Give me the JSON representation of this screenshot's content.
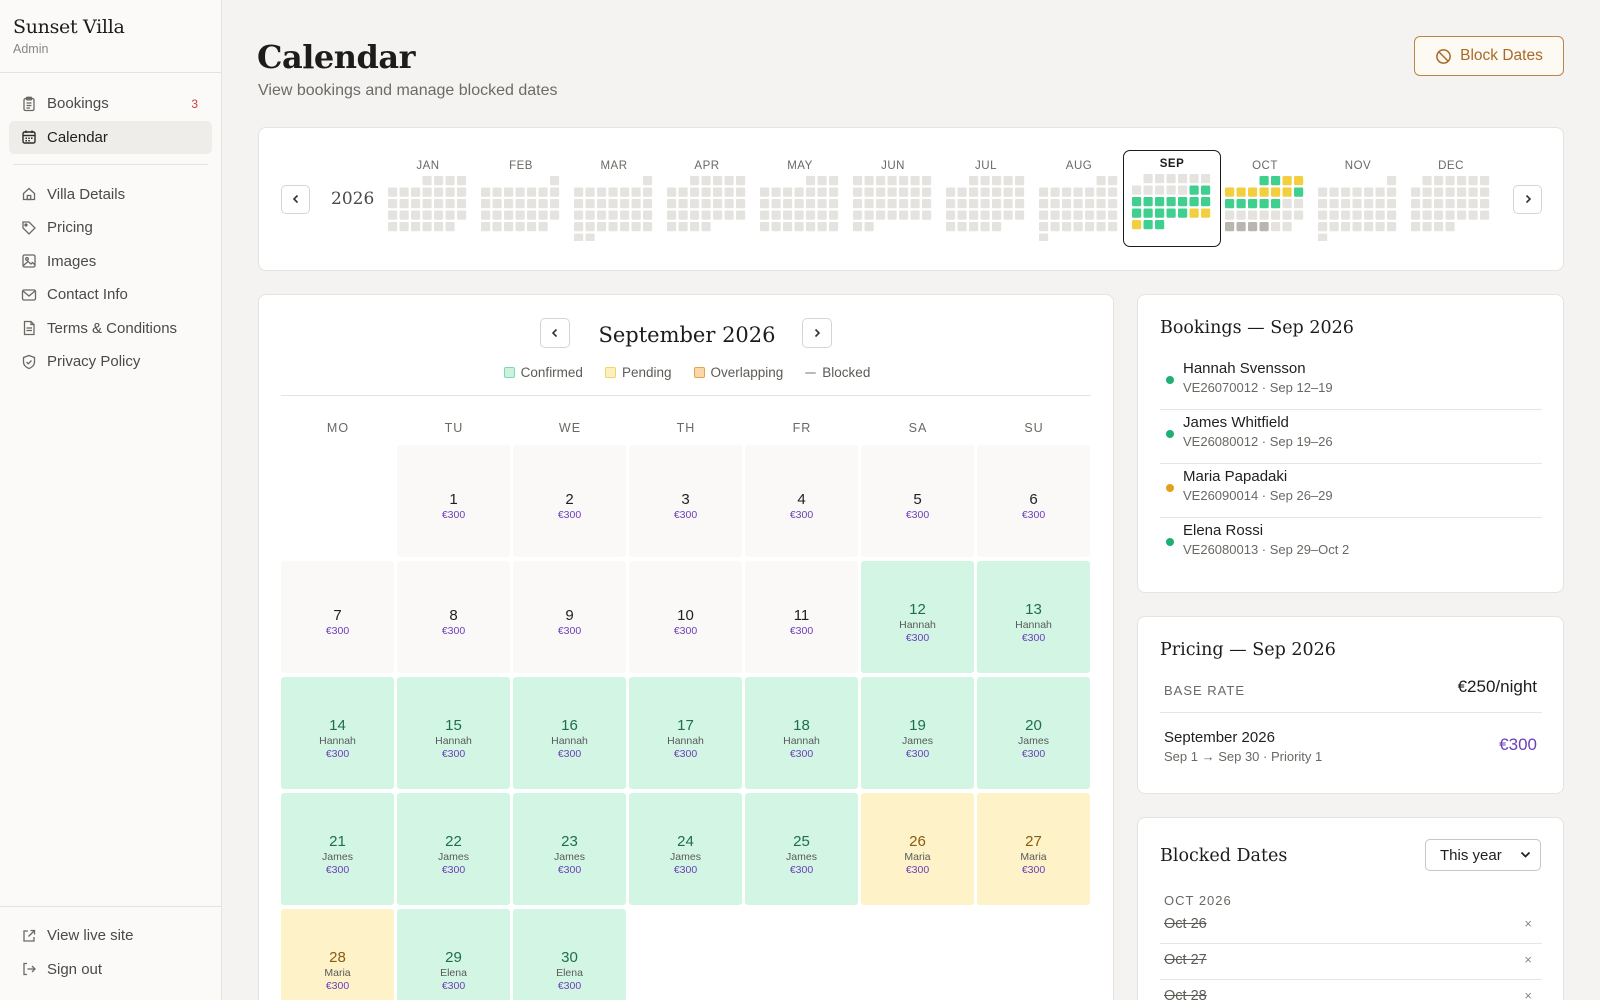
{
  "brand": {
    "title": "Sunset Villa",
    "subtitle": "Admin"
  },
  "nav": {
    "items": [
      {
        "label": "Bookings",
        "icon": "clipboard-icon",
        "badge": "3",
        "active": false
      },
      {
        "label": "Calendar",
        "icon": "calendar-icon",
        "active": true
      },
      {
        "label": "Villa Details",
        "icon": "home-icon"
      },
      {
        "label": "Pricing",
        "icon": "tag-icon"
      },
      {
        "label": "Images",
        "icon": "image-icon"
      },
      {
        "label": "Contact Info",
        "icon": "mail-icon"
      },
      {
        "label": "Terms & Conditions",
        "icon": "document-icon"
      },
      {
        "label": "Privacy Policy",
        "icon": "shield-icon"
      }
    ],
    "bottom": [
      {
        "label": "View live site",
        "icon": "external-link-icon"
      },
      {
        "label": "Sign out",
        "icon": "sign-out-icon"
      }
    ]
  },
  "header": {
    "title": "Calendar",
    "subtitle": "View bookings and manage blocked dates",
    "block_button": "Block Dates"
  },
  "year_strip": {
    "year": "2026",
    "months": [
      "JAN",
      "FEB",
      "MAR",
      "APR",
      "MAY",
      "JUN",
      "JUL",
      "AUG",
      "SEP",
      "OCT",
      "NOV",
      "DEC"
    ],
    "selected": "SEP"
  },
  "calendar": {
    "month_title": "September 2026",
    "legend": [
      {
        "label": "Confirmed",
        "color": "#c9f3de",
        "border": "#7fd9ae"
      },
      {
        "label": "Pending",
        "color": "#fdf0bf",
        "border": "#f0d56a"
      },
      {
        "label": "Overlapping",
        "color": "#fbd7a8",
        "border": "#e9a24e"
      },
      {
        "label": "Blocked",
        "color": "#ffffff",
        "border": "#bdbab5"
      }
    ],
    "weekdays": [
      "MO",
      "TU",
      "WE",
      "TH",
      "FR",
      "SA",
      "SU"
    ],
    "first_weekday_offset": 1,
    "days": [
      {
        "d": "1",
        "price": "€300",
        "status": "free"
      },
      {
        "d": "2",
        "price": "€300",
        "status": "free"
      },
      {
        "d": "3",
        "price": "€300",
        "status": "free"
      },
      {
        "d": "4",
        "price": "€300",
        "status": "free"
      },
      {
        "d": "5",
        "price": "€300",
        "status": "free"
      },
      {
        "d": "6",
        "price": "€300",
        "status": "free"
      },
      {
        "d": "7",
        "price": "€300",
        "status": "free"
      },
      {
        "d": "8",
        "price": "€300",
        "status": "free"
      },
      {
        "d": "9",
        "price": "€300",
        "status": "free"
      },
      {
        "d": "10",
        "price": "€300",
        "status": "free"
      },
      {
        "d": "11",
        "price": "€300",
        "status": "free"
      },
      {
        "d": "12",
        "guest": "Hannah",
        "price": "€300",
        "status": "confirmed"
      },
      {
        "d": "13",
        "guest": "Hannah",
        "price": "€300",
        "status": "confirmed"
      },
      {
        "d": "14",
        "guest": "Hannah",
        "price": "€300",
        "status": "confirmed"
      },
      {
        "d": "15",
        "guest": "Hannah",
        "price": "€300",
        "status": "confirmed"
      },
      {
        "d": "16",
        "guest": "Hannah",
        "price": "€300",
        "status": "confirmed"
      },
      {
        "d": "17",
        "guest": "Hannah",
        "price": "€300",
        "status": "confirmed"
      },
      {
        "d": "18",
        "guest": "Hannah",
        "price": "€300",
        "status": "confirmed"
      },
      {
        "d": "19",
        "guest": "James",
        "price": "€300",
        "status": "confirmed"
      },
      {
        "d": "20",
        "guest": "James",
        "price": "€300",
        "status": "confirmed"
      },
      {
        "d": "21",
        "guest": "James",
        "price": "€300",
        "status": "confirmed"
      },
      {
        "d": "22",
        "guest": "James",
        "price": "€300",
        "status": "confirmed"
      },
      {
        "d": "23",
        "guest": "James",
        "price": "€300",
        "status": "confirmed"
      },
      {
        "d": "24",
        "guest": "James",
        "price": "€300",
        "status": "confirmed"
      },
      {
        "d": "25",
        "guest": "James",
        "price": "€300",
        "status": "confirmed"
      },
      {
        "d": "26",
        "guest": "Maria",
        "price": "€300",
        "status": "pending"
      },
      {
        "d": "27",
        "guest": "Maria",
        "price": "€300",
        "status": "pending"
      },
      {
        "d": "28",
        "guest": "Maria",
        "price": "€300",
        "status": "pending"
      },
      {
        "d": "29",
        "guest": "Elena",
        "price": "€300",
        "status": "confirmed"
      },
      {
        "d": "30",
        "guest": "Elena",
        "price": "€300",
        "status": "confirmed"
      }
    ]
  },
  "bookings": {
    "title": "Bookings — Sep 2026",
    "items": [
      {
        "name": "Hannah Svensson",
        "meta": "VE26070012 · Sep 12–19",
        "color": "#1fae73"
      },
      {
        "name": "James Whitfield",
        "meta": "VE26080012 · Sep 19–26",
        "color": "#1fae73"
      },
      {
        "name": "Maria Papadaki",
        "meta": "VE26090014 · Sep 26–29",
        "color": "#e0a21a"
      },
      {
        "name": "Elena Rossi",
        "meta": "VE26080013 · Sep 29–Oct 2",
        "color": "#1fae73"
      }
    ]
  },
  "pricing": {
    "title": "Pricing — Sep 2026",
    "base_label": "BASE RATE",
    "base_value": "€250/night",
    "period_name": "September 2026",
    "period_meta": "Sep 1 → Sep 30 · Priority 1",
    "period_price": "€300"
  },
  "blocked": {
    "title": "Blocked Dates",
    "filter": "This year",
    "month": "OCT 2026",
    "dates": [
      "Oct 26",
      "Oct 27",
      "Oct 28"
    ],
    "remove_glyph": "×"
  },
  "colors": {
    "accent": "#a86a28",
    "confirmed": "#d2f5e4",
    "pending": "#fdf2c8",
    "price": "#6a3fb8"
  }
}
